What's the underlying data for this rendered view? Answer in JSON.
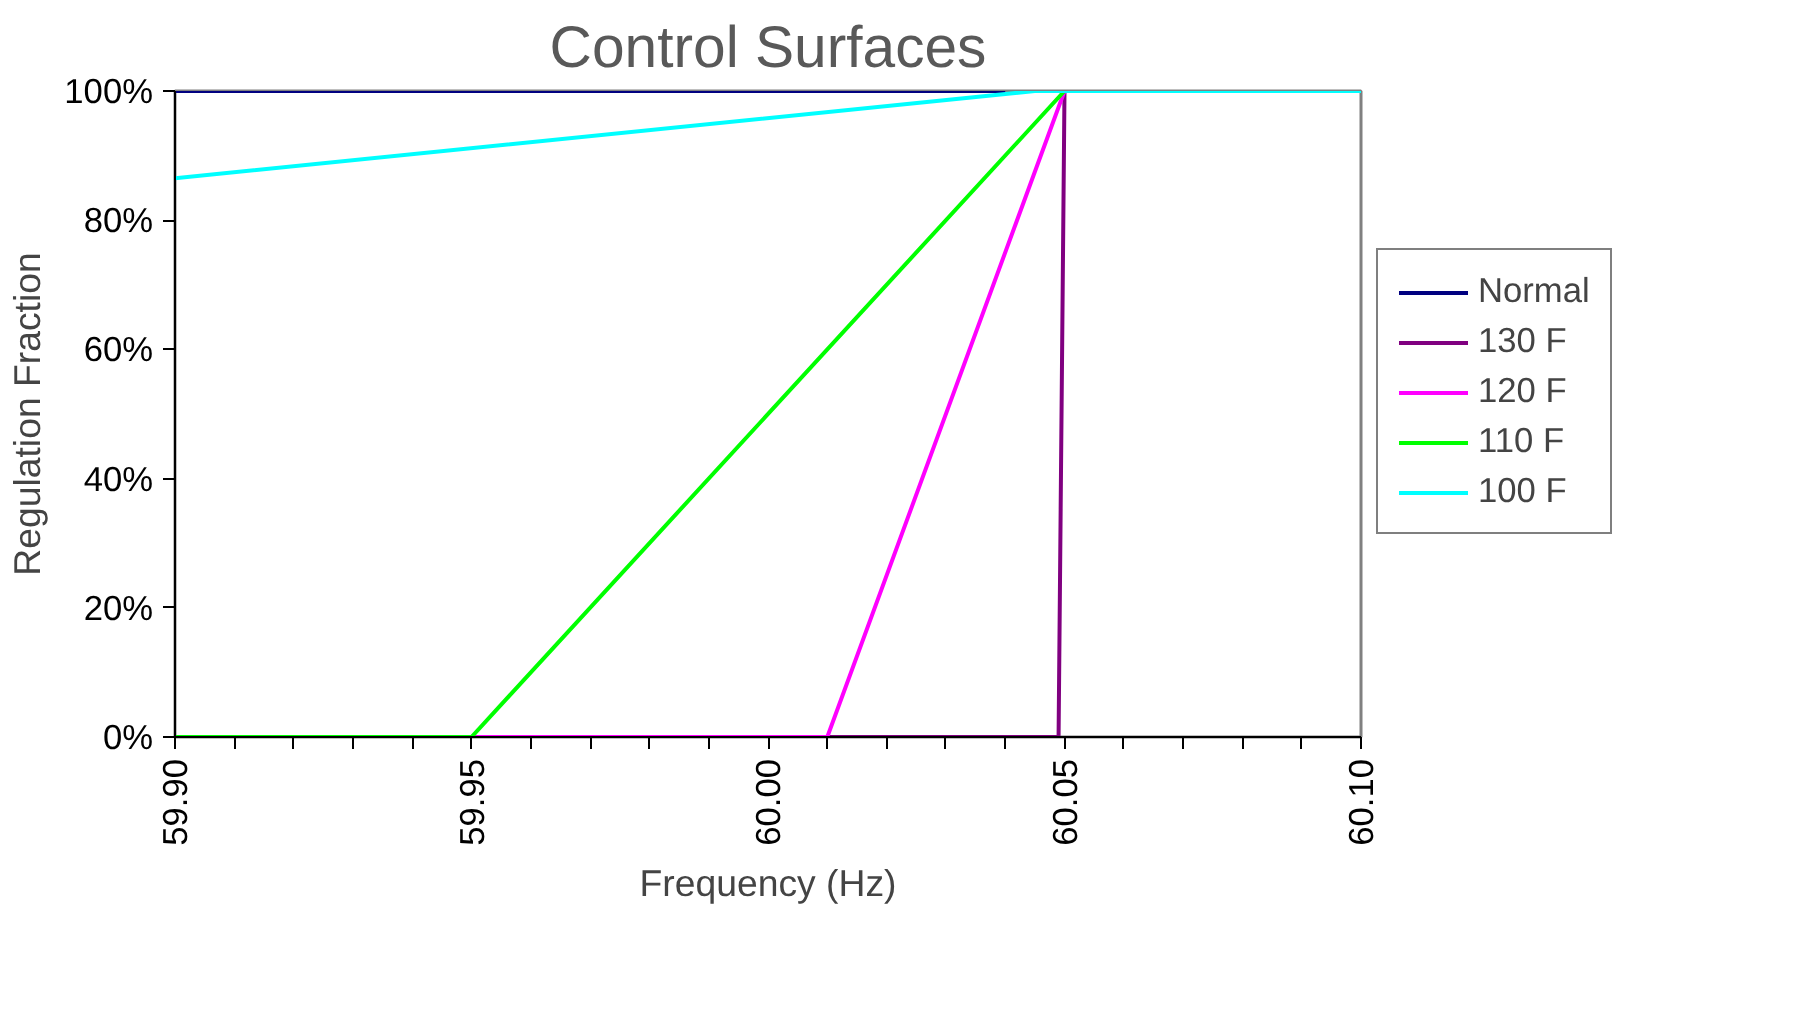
{
  "chart_data": {
    "type": "line",
    "title": "Control Surfaces",
    "xlabel": "Frequency (Hz)",
    "ylabel": "Regulation Fraction",
    "xlim": [
      59.9,
      60.1
    ],
    "xticks": [
      {
        "value": 59.9,
        "label": "59.90"
      },
      {
        "value": 59.95,
        "label": "59.95"
      },
      {
        "value": 60.0,
        "label": "60.00"
      },
      {
        "value": 60.05,
        "label": "60.05"
      },
      {
        "value": 60.1,
        "label": "60.10"
      }
    ],
    "ylim": [
      0,
      1
    ],
    "yticks": [
      {
        "value": 0,
        "label": "0%"
      },
      {
        "value": 0.2,
        "label": "20%"
      },
      {
        "value": 0.4,
        "label": "40%"
      },
      {
        "value": 0.6,
        "label": "60%"
      },
      {
        "value": 0.8,
        "label": "80%"
      },
      {
        "value": 1,
        "label": "100%"
      }
    ],
    "grid": false,
    "legend": "right",
    "marker": "none",
    "line_style": "solid",
    "series": [
      {
        "name": "Normal",
        "color": "#000080",
        "x": [
          59.9,
          60.04
        ],
        "values": [
          1,
          1
        ]
      },
      {
        "name": "130 F",
        "color": "#800080",
        "x": [
          59.9,
          60.049,
          60.05
        ],
        "values": [
          0,
          0,
          1
        ]
      },
      {
        "name": "120 F",
        "color": "#ff00ff",
        "x": [
          59.9,
          60.01,
          60.05
        ],
        "values": [
          0,
          0,
          1
        ]
      },
      {
        "name": "110 F",
        "color": "#00ff00",
        "x": [
          59.9,
          59.95,
          60.05
        ],
        "values": [
          0,
          0,
          1
        ]
      },
      {
        "name": "100 F",
        "color": "#00ffff",
        "x": [
          59.9,
          60.045,
          60.1
        ],
        "values": [
          0.865,
          1,
          1
        ]
      }
    ]
  }
}
